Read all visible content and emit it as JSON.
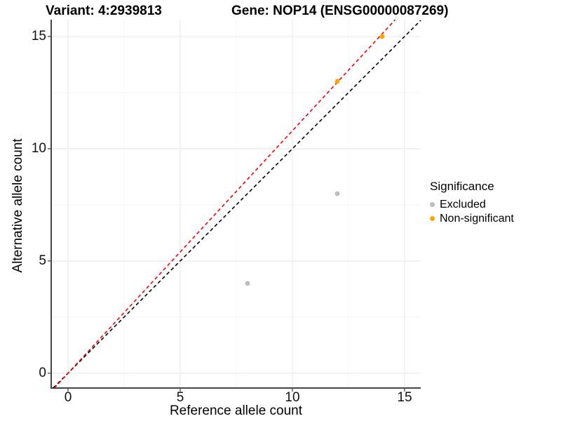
{
  "title": {
    "variant": "Variant: 4:2939813",
    "gene": "Gene: NOP14 (ENSG00000087269)"
  },
  "legend": {
    "title": "Significance",
    "items": [
      {
        "label": "Excluded",
        "color": "#BEBEBE"
      },
      {
        "label": "Non-significant",
        "color": "#FFA500"
      }
    ]
  },
  "colors": {
    "identity_line": "#000000",
    "fit_line": "#FF0000",
    "axis_line": "#464646",
    "major_grid": "#E8E8E8",
    "minor_grid": "#F4F4F4",
    "tick_text": "#111111"
  },
  "chart_data": {
    "type": "scatter",
    "title": "Variant: 4:2939813    Gene: NOP14 (ENSG00000087269)",
    "xlabel": "Reference allele count",
    "ylabel": "Alternative allele count",
    "xlim": [
      -0.75,
      15.72
    ],
    "ylim": [
      -0.66,
      15.75
    ],
    "x_ticks": {
      "values": [
        0,
        5,
        10,
        15
      ],
      "labels": [
        "0",
        "5",
        "10",
        "15"
      ]
    },
    "y_ticks": {
      "values": [
        0,
        5,
        10,
        15
      ],
      "labels": [
        "0",
        "5",
        "10",
        "15"
      ]
    },
    "x_minor": [
      2.5,
      7.5,
      12.5
    ],
    "y_minor": [
      2.5,
      7.5,
      12.5
    ],
    "grid": "major+minor",
    "legend_position": "right",
    "series": [
      {
        "name": "Excluded",
        "color": "#BEBEBE",
        "points": [
          [
            8,
            4
          ],
          [
            12,
            8
          ]
        ]
      },
      {
        "name": "Non-significant",
        "color": "#FFA500",
        "points": [
          [
            12,
            13
          ],
          [
            14,
            15
          ]
        ]
      }
    ],
    "lines": [
      {
        "name": "identity-line",
        "color": "#000000",
        "style": "dashed",
        "slope": 1.0,
        "intercept": 0
      },
      {
        "name": "fit-line",
        "color": "#FF0000",
        "style": "dashed",
        "slope": 1.08,
        "intercept": 0
      }
    ]
  }
}
